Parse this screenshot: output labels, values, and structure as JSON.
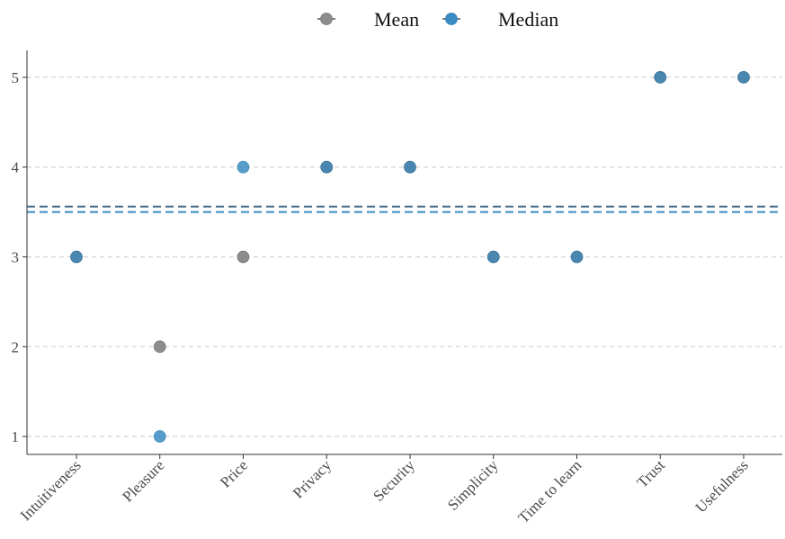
{
  "chart_data": {
    "type": "scatter",
    "categories": [
      "Intuitiveness",
      "Pleasure",
      "Price",
      "Privacy",
      "Security",
      "Simplicity",
      "Time to learn",
      "Trust",
      "Usefulness"
    ],
    "series": [
      {
        "name": "Mean",
        "color": "#8c8c8c",
        "values": [
          3,
          2,
          3,
          4,
          4,
          3,
          3,
          5,
          5
        ]
      },
      {
        "name": "Median",
        "color": "#3a8cc4",
        "values": [
          3,
          1,
          4,
          4,
          4,
          3,
          3,
          5,
          5
        ]
      }
    ],
    "reference_lines": [
      {
        "series": "Mean",
        "value": 3.56,
        "color": "#4a6f8c",
        "style": "dashed"
      },
      {
        "series": "Median",
        "value": 3.5,
        "color": "#3a8cc4",
        "style": "dashed"
      }
    ],
    "overlap_color": "#4a87b0",
    "yticks": [
      1,
      2,
      3,
      4,
      5
    ],
    "ylim": [
      0.8,
      5.3
    ],
    "grid": "horizontal dashed",
    "legend": {
      "placement": "top-center",
      "entries": [
        "Mean",
        "Median"
      ]
    },
    "title": "",
    "xlabel": "",
    "ylabel": ""
  }
}
